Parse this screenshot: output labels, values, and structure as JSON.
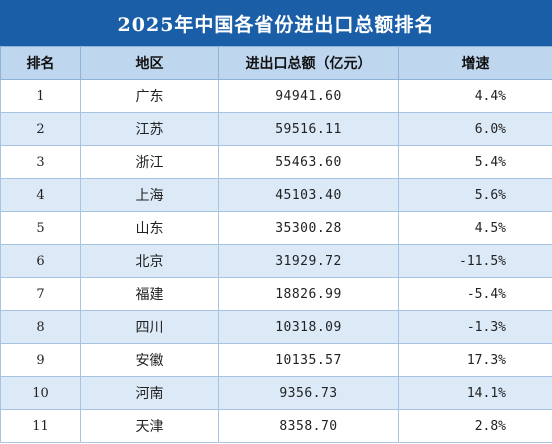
{
  "title": "2025年中国各省份进出口总额排名",
  "headers": {
    "rank": "排名",
    "region": "地区",
    "total": "进出口总额（亿元）",
    "growth": "增速"
  },
  "rows": [
    {
      "rank": "1",
      "region": "广东",
      "total": "94941.60",
      "growth": "4.4%"
    },
    {
      "rank": "2",
      "region": "江苏",
      "total": "59516.11",
      "growth": "6.0%"
    },
    {
      "rank": "3",
      "region": "浙江",
      "total": "55463.60",
      "growth": "5.4%"
    },
    {
      "rank": "4",
      "region": "上海",
      "total": "45103.40",
      "growth": "5.6%"
    },
    {
      "rank": "5",
      "region": "山东",
      "total": "35300.28",
      "growth": "4.5%"
    },
    {
      "rank": "6",
      "region": "北京",
      "total": "31929.72",
      "growth": "-11.5%"
    },
    {
      "rank": "7",
      "region": "福建",
      "total": "18826.99",
      "growth": "-5.4%"
    },
    {
      "rank": "8",
      "region": "四川",
      "total": "10318.09",
      "growth": "-1.3%"
    },
    {
      "rank": "9",
      "region": "安徽",
      "total": "10135.57",
      "growth": "17.3%"
    },
    {
      "rank": "10",
      "region": "河南",
      "total": "9356.73",
      "growth": "14.1%"
    },
    {
      "rank": "11",
      "region": "天津",
      "total": "8358.70",
      "growth": "2.8%"
    }
  ],
  "colors": {
    "title_background": "#1b5ea8",
    "header_background": "#bfd6ef",
    "stripe_background": "#dce9f7"
  }
}
